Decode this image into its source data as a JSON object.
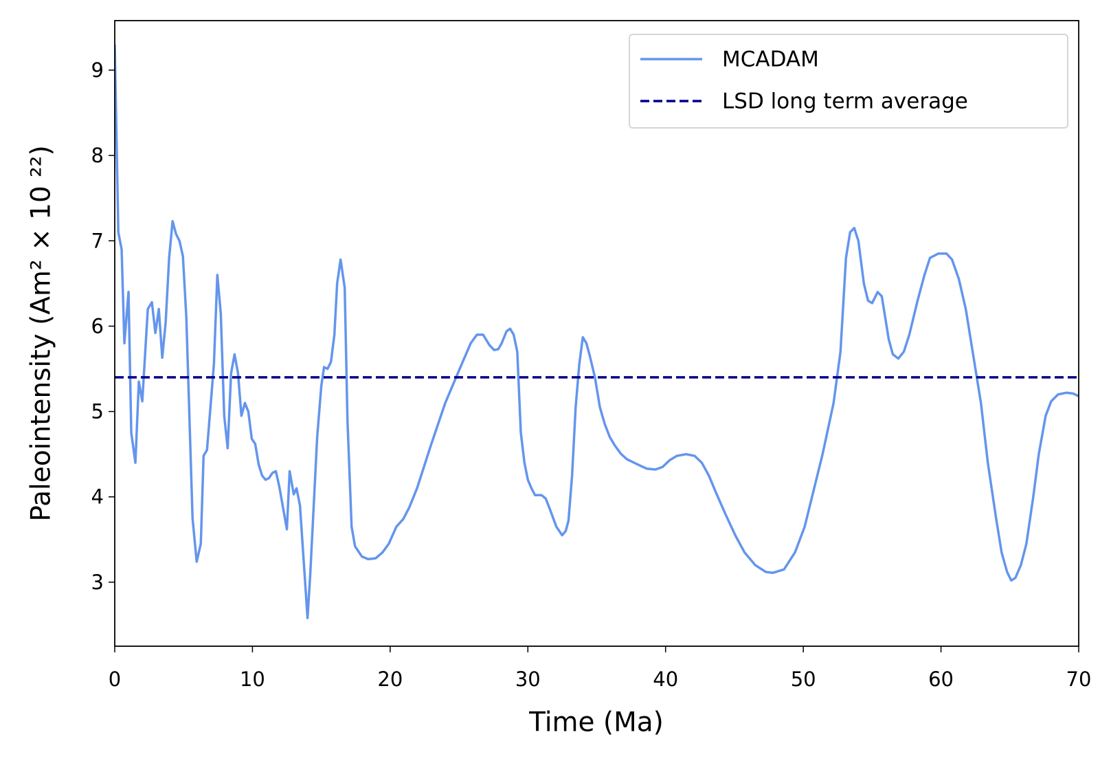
{
  "chart_data": {
    "type": "line",
    "x_label": "Time (Ma)",
    "y_label": "Paleointensity (Am² × 10 ²²)",
    "xlim": [
      0,
      70
    ],
    "ylim": [
      2.25,
      9.58
    ],
    "xticks": [
      0,
      10,
      20,
      30,
      40,
      50,
      60,
      70
    ],
    "yticks": [
      3,
      4,
      5,
      6,
      7,
      8,
      9
    ],
    "legend": "upper right",
    "x": [
      0,
      0.26,
      0.5,
      0.7,
      1.0,
      1.2,
      1.5,
      1.75,
      2.0,
      2.4,
      2.7,
      2.95,
      3.2,
      3.45,
      3.7,
      3.95,
      4.2,
      4.45,
      4.7,
      4.95,
      5.2,
      5.65,
      5.95,
      6.25,
      6.45,
      6.7,
      7.2,
      7.45,
      7.7,
      7.95,
      8.2,
      8.45,
      8.7,
      8.95,
      9.2,
      9.45,
      9.7,
      9.95,
      10.2,
      10.45,
      10.7,
      10.95,
      11.2,
      11.45,
      11.7,
      11.95,
      12.5,
      12.7,
      13.0,
      13.2,
      13.45,
      14.0,
      14.2,
      14.7,
      15.0,
      15.2,
      15.45,
      15.7,
      15.95,
      16.15,
      16.4,
      16.7,
      16.9,
      17.2,
      17.45,
      17.95,
      18.4,
      18.95,
      19.45,
      19.9,
      20.45,
      20.95,
      21.4,
      21.95,
      22.95,
      24.0,
      25.05,
      25.85,
      26.3,
      26.75,
      27.2,
      27.55,
      27.85,
      28.1,
      28.45,
      28.71,
      28.97,
      29.23,
      29.49,
      29.75,
      30.0,
      30.26,
      30.52,
      30.99,
      31.3,
      31.61,
      32.07,
      32.49,
      32.75,
      32.95,
      33.21,
      33.47,
      33.73,
      33.99,
      34.25,
      34.5,
      34.87,
      35.23,
      35.59,
      35.95,
      36.32,
      36.78,
      37.2,
      37.71,
      38.23,
      38.64,
      39.27,
      39.78,
      40.3,
      40.82,
      41.49,
      42.11,
      42.63,
      43.14,
      43.66,
      44.34,
      45.06,
      45.73,
      46.51,
      47.28,
      47.8,
      48.6,
      49.4,
      50.1,
      51.4,
      52.2,
      52.7,
      53.1,
      53.4,
      53.7,
      54.0,
      54.4,
      54.7,
      55.0,
      55.4,
      55.7,
      56.2,
      56.5,
      56.9,
      57.3,
      57.7,
      58.3,
      58.8,
      59.2,
      59.8,
      60.4,
      60.8,
      61.3,
      61.8,
      62.3,
      62.9,
      63.4,
      64.0,
      64.4,
      64.8,
      65.1,
      65.4,
      65.8,
      66.2,
      66.7,
      67.1,
      67.6,
      68.0,
      68.5,
      69.1,
      69.6,
      70.0
    ],
    "series": [
      {
        "name": "MCADAM",
        "color": "#6495ed",
        "values": [
          9.3,
          7.1,
          6.9,
          5.8,
          6.4,
          4.75,
          4.4,
          5.35,
          5.12,
          6.2,
          6.28,
          5.92,
          6.2,
          5.63,
          6.05,
          6.8,
          7.23,
          7.08,
          7.0,
          6.82,
          6.1,
          3.75,
          3.24,
          3.45,
          4.48,
          4.55,
          5.55,
          6.6,
          6.15,
          4.95,
          4.57,
          5.45,
          5.67,
          5.45,
          4.95,
          5.1,
          5.0,
          4.68,
          4.62,
          4.38,
          4.25,
          4.2,
          4.22,
          4.28,
          4.3,
          4.12,
          3.62,
          4.3,
          4.03,
          4.1,
          3.9,
          2.58,
          3.1,
          4.7,
          5.3,
          5.52,
          5.5,
          5.58,
          5.9,
          6.5,
          6.78,
          6.45,
          4.9,
          3.65,
          3.42,
          3.3,
          3.27,
          3.28,
          3.35,
          3.45,
          3.65,
          3.74,
          3.88,
          4.1,
          4.6,
          5.1,
          5.5,
          5.8,
          5.9,
          5.9,
          5.78,
          5.72,
          5.73,
          5.8,
          5.94,
          5.97,
          5.9,
          5.7,
          4.75,
          4.4,
          4.2,
          4.1,
          4.02,
          4.02,
          3.98,
          3.85,
          3.65,
          3.55,
          3.6,
          3.72,
          4.25,
          5.05,
          5.55,
          5.87,
          5.8,
          5.65,
          5.4,
          5.05,
          4.85,
          4.7,
          4.6,
          4.5,
          4.44,
          4.4,
          4.36,
          4.33,
          4.32,
          4.35,
          4.43,
          4.48,
          4.5,
          4.48,
          4.4,
          4.25,
          4.05,
          3.8,
          3.55,
          3.35,
          3.2,
          3.12,
          3.11,
          3.15,
          3.35,
          3.65,
          4.5,
          5.1,
          5.7,
          6.8,
          7.1,
          7.15,
          7.0,
          6.5,
          6.3,
          6.27,
          6.4,
          6.35,
          5.85,
          5.67,
          5.62,
          5.7,
          5.9,
          6.3,
          6.6,
          6.8,
          6.85,
          6.85,
          6.78,
          6.55,
          6.2,
          5.7,
          5.1,
          4.4,
          3.75,
          3.35,
          3.12,
          3.02,
          3.05,
          3.2,
          3.45,
          4.0,
          4.5,
          4.95,
          5.12,
          5.2,
          5.22,
          5.21,
          5.18
        ]
      }
    ],
    "reference_lines": [
      {
        "name": "LSD long term average",
        "color": "#00008b",
        "value": 5.4,
        "dashed": true
      }
    ]
  }
}
